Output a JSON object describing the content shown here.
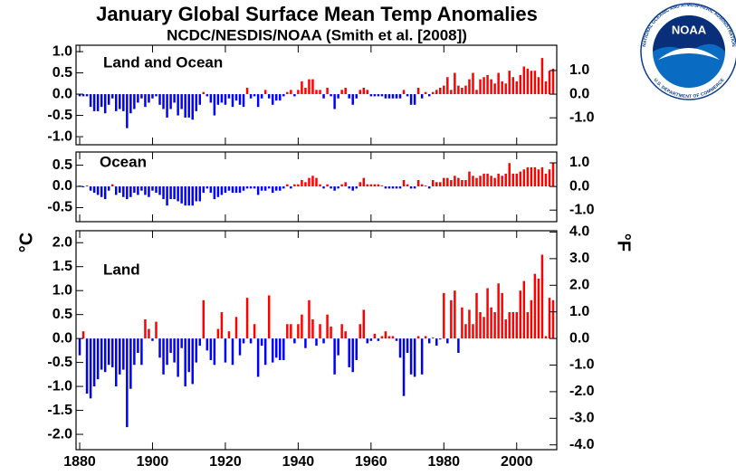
{
  "chart_data": {
    "type": "bar",
    "title": "January Global Surface Mean Temp Anomalies",
    "subtitle": "NCDC/NESDIS/NOAA (Smith et al. [2008])",
    "ylabel": "°C",
    "y2label": "°F",
    "positive_color": "#ff0000",
    "negative_color": "#0000ff",
    "xlim": [
      1879,
      2011
    ],
    "xticks": [
      1880,
      1900,
      1920,
      1940,
      1960,
      1980,
      2000
    ],
    "x": [
      1880,
      1881,
      1882,
      1883,
      1884,
      1885,
      1886,
      1887,
      1888,
      1889,
      1890,
      1891,
      1892,
      1893,
      1894,
      1895,
      1896,
      1897,
      1898,
      1899,
      1900,
      1901,
      1902,
      1903,
      1904,
      1905,
      1906,
      1907,
      1908,
      1909,
      1910,
      1911,
      1912,
      1913,
      1914,
      1915,
      1916,
      1917,
      1918,
      1919,
      1920,
      1921,
      1922,
      1923,
      1924,
      1925,
      1926,
      1927,
      1928,
      1929,
      1930,
      1931,
      1932,
      1933,
      1934,
      1935,
      1936,
      1937,
      1938,
      1939,
      1940,
      1941,
      1942,
      1943,
      1944,
      1945,
      1946,
      1947,
      1948,
      1949,
      1950,
      1951,
      1952,
      1953,
      1954,
      1955,
      1956,
      1957,
      1958,
      1959,
      1960,
      1961,
      1962,
      1963,
      1964,
      1965,
      1966,
      1967,
      1968,
      1969,
      1970,
      1971,
      1972,
      1973,
      1974,
      1975,
      1976,
      1977,
      1978,
      1979,
      1980,
      1981,
      1982,
      1983,
      1984,
      1985,
      1986,
      1987,
      1988,
      1989,
      1990,
      1991,
      1992,
      1993,
      1994,
      1995,
      1996,
      1997,
      1998,
      1999,
      2000,
      2001,
      2002,
      2003,
      2004,
      2005,
      2006,
      2007,
      2008,
      2009,
      2010
    ],
    "panels": [
      {
        "label": "Land and Ocean",
        "ylim": [
          -1.19,
          1.15
        ],
        "y2lim": [
          -2.14,
          2.07
        ],
        "yticks": [
          {
            "value": 1,
            "label": "1.0"
          },
          0.5,
          {
            "value": 0,
            "label": "0.0"
          },
          -0.5,
          {
            "value": -1,
            "label": "-1.0"
          }
        ],
        "y2ticks": [
          {
            "value": 1,
            "label": "1.0"
          },
          {
            "value": 0,
            "label": "0.0"
          },
          {
            "value": -1,
            "label": "-1.0"
          }
        ],
        "values": [
          -0.05,
          -0.05,
          -0.05,
          -0.3,
          -0.4,
          -0.4,
          -0.3,
          -0.45,
          -0.25,
          -0.1,
          -0.4,
          -0.35,
          -0.4,
          -0.8,
          -0.45,
          -0.35,
          -0.2,
          -0.1,
          -0.3,
          -0.2,
          -0.1,
          -0.05,
          -0.25,
          -0.35,
          -0.55,
          -0.35,
          -0.2,
          -0.5,
          -0.35,
          -0.55,
          -0.55,
          -0.6,
          -0.4,
          -0.25,
          0.05,
          -0.05,
          -0.2,
          -0.5,
          -0.25,
          -0.2,
          -0.25,
          -0.1,
          -0.3,
          -0.15,
          -0.25,
          -0.3,
          0.15,
          -0.1,
          -0.05,
          -0.3,
          -0.1,
          0.1,
          -0.1,
          -0.25,
          -0.15,
          -0.15,
          -0.05,
          0.05,
          0.1,
          -0.05,
          0.1,
          0.3,
          0.15,
          0.35,
          0.35,
          0.1,
          0.1,
          -0.1,
          0.15,
          -0.05,
          -0.35,
          -0.1,
          0.1,
          0.15,
          -0.1,
          -0.25,
          -0.1,
          0.1,
          0.15,
          0.1,
          -0.05,
          -0.05,
          -0.05,
          -0.05,
          -0.1,
          -0.1,
          -0.1,
          -0.1,
          -0.1,
          0.1,
          -0.05,
          -0.25,
          -0.25,
          0.15,
          -0.1,
          0.05,
          -0.05,
          0.05,
          0.1,
          0.15,
          0.2,
          0.4,
          0.1,
          0.5,
          0.2,
          0.15,
          0.2,
          0.35,
          0.5,
          0.1,
          0.35,
          0.4,
          0.45,
          0.35,
          0.25,
          0.5,
          0.3,
          0.25,
          0.55,
          0.4,
          0.3,
          0.45,
          0.65,
          0.6,
          0.55,
          0.55,
          0.4,
          0.85,
          0.3,
          0.55,
          0.6
        ]
      },
      {
        "label": "Ocean",
        "ylim": [
          -0.83,
          0.81
        ],
        "y2lim": [
          -1.49,
          1.46
        ],
        "yticks": [
          0.5,
          {
            "value": 0,
            "label": "0.0"
          },
          -0.5
        ],
        "y2ticks": [
          {
            "value": 1,
            "label": "1.0"
          },
          {
            "value": 0,
            "label": "0.0"
          },
          {
            "value": -1,
            "label": "-1.0"
          }
        ],
        "values": [
          0.02,
          -0.02,
          0.02,
          -0.1,
          -0.15,
          -0.2,
          -0.25,
          -0.3,
          -0.1,
          0.05,
          -0.2,
          -0.15,
          -0.25,
          -0.3,
          -0.25,
          -0.15,
          -0.2,
          -0.1,
          -0.2,
          -0.25,
          -0.1,
          -0.15,
          -0.2,
          -0.3,
          -0.45,
          -0.3,
          -0.3,
          -0.35,
          -0.4,
          -0.45,
          -0.45,
          -0.45,
          -0.35,
          -0.35,
          -0.15,
          -0.05,
          -0.15,
          -0.3,
          -0.25,
          -0.2,
          -0.15,
          -0.1,
          -0.15,
          -0.15,
          -0.15,
          -0.1,
          -0.05,
          -0.05,
          -0.05,
          -0.2,
          -0.1,
          -0.1,
          -0.05,
          -0.15,
          -0.1,
          -0.1,
          -0.05,
          0.05,
          -0.05,
          0.05,
          0.05,
          0.15,
          0.1,
          0.2,
          0.25,
          0.2,
          0.05,
          -0.05,
          0.05,
          -0.05,
          -0.1,
          -0.05,
          0.05,
          0.1,
          -0.05,
          -0.1,
          -0.05,
          0.1,
          0.2,
          0.05,
          0.05,
          0.05,
          0.05,
          0.02,
          -0.05,
          -0.05,
          -0.05,
          -0.05,
          -0.05,
          0.15,
          0.05,
          -0.05,
          -0.05,
          0.15,
          0.05,
          0.02,
          -0.05,
          0.15,
          0.1,
          0.1,
          0.2,
          0.2,
          0.15,
          0.25,
          0.2,
          0.15,
          0.15,
          0.35,
          0.25,
          0.2,
          0.25,
          0.3,
          0.3,
          0.25,
          0.2,
          0.3,
          0.25,
          0.3,
          0.55,
          0.3,
          0.3,
          0.35,
          0.4,
          0.45,
          0.45,
          0.45,
          0.4,
          0.45,
          0.3,
          0.4,
          0.55
        ]
      },
      {
        "label": "Land",
        "ylim": [
          -2.32,
          2.25
        ],
        "y2lim": [
          -4.18,
          4.05
        ],
        "yticks": [
          {
            "value": 2,
            "label": "2.0"
          },
          1.5,
          {
            "value": 1,
            "label": "1.0"
          },
          0.5,
          {
            "value": 0,
            "label": "0.0"
          },
          -0.5,
          {
            "value": -1,
            "label": "-1.0"
          },
          -1.5,
          {
            "value": -2,
            "label": "-2.0"
          }
        ],
        "y2ticks": [
          {
            "value": 4,
            "label": "4.0"
          },
          {
            "value": 3,
            "label": "3.0"
          },
          {
            "value": 2,
            "label": "2.0"
          },
          {
            "value": 1,
            "label": "1.0"
          },
          {
            "value": 0,
            "label": "0.0"
          },
          {
            "value": -1,
            "label": "-1.0"
          },
          {
            "value": -2,
            "label": "-2.0"
          },
          {
            "value": -3,
            "label": "-3.0"
          },
          {
            "value": -4,
            "label": "-4.0"
          }
        ],
        "values": [
          -0.35,
          0.15,
          -1.15,
          -1.25,
          -1.0,
          -0.85,
          -0.65,
          -0.7,
          -0.55,
          -0.6,
          -1.0,
          -0.75,
          -0.65,
          -1.85,
          -1.05,
          -0.55,
          -0.3,
          -0.55,
          0.4,
          0.2,
          -0.05,
          0.35,
          -0.4,
          -0.75,
          -0.55,
          -0.3,
          -0.5,
          -0.8,
          -0.2,
          -1.0,
          -0.7,
          -0.95,
          -0.5,
          -0.15,
          0.8,
          -0.25,
          -0.45,
          -0.55,
          0.2,
          0.55,
          -0.5,
          0.15,
          -0.55,
          0.45,
          -0.35,
          -0.1,
          0.85,
          -0.1,
          0.3,
          -0.8,
          -0.15,
          -0.55,
          0.9,
          -0.5,
          -0.4,
          -0.45,
          -0.45,
          0.3,
          0.3,
          -0.1,
          0.3,
          0.5,
          -0.2,
          0.8,
          0.4,
          -0.15,
          0.3,
          -0.1,
          0.5,
          0.25,
          -0.75,
          -0.35,
          0.3,
          0.15,
          -0.6,
          -0.7,
          -0.45,
          0.3,
          0.6,
          -0.1,
          -0.05,
          0.1,
          -0.05,
          0.05,
          0.15,
          0.05,
          0.05,
          -0.05,
          -0.4,
          -1.2,
          -0.3,
          -0.75,
          -0.8,
          0.05,
          -0.75,
          0.05,
          -0.1,
          0.02,
          -0.15,
          -0.02,
          0.95,
          -0.1,
          0.8,
          1.0,
          -0.3,
          0.65,
          0.3,
          0.6,
          0.3,
          0.95,
          0.55,
          0.45,
          1.05,
          0.65,
          0.55,
          1.15,
          0.95,
          0.4,
          0.55,
          0.55,
          0.55,
          1.0,
          1.2,
          0.55,
          0.8,
          1.35,
          1.25,
          1.75,
          0.05,
          0.85,
          0.8
        ]
      }
    ],
    "logo": {
      "text": "NOAA",
      "ring_top": "NATIONAL OCEANIC AND ATMOSPHERIC ADMINISTRATION",
      "ring_bottom": "U.S. DEPARTMENT OF COMMERCE"
    }
  }
}
